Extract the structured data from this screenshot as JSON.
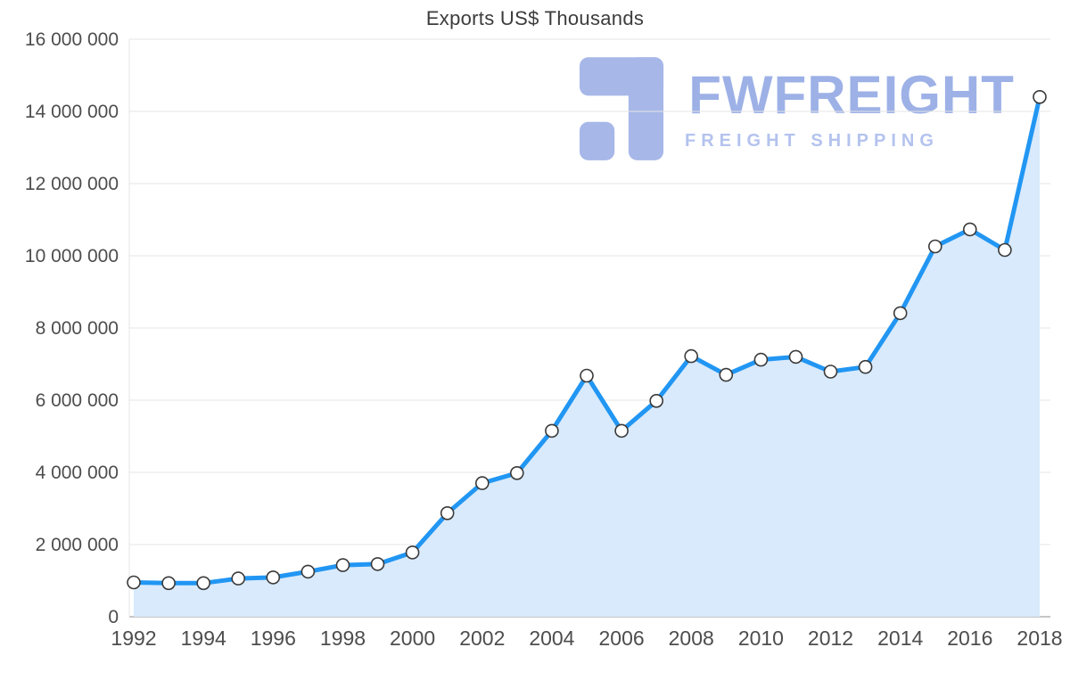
{
  "watermark": {
    "brand": "FWFREIGHT",
    "tagline": "FREIGHT SHIPPING"
  },
  "colors": {
    "line": "#2196f3",
    "area": "#d8eafc",
    "grid": "#e4e4e4",
    "axis": "#b3b3b3",
    "marker_fill": "#ffffff",
    "marker_stroke": "#3a3a3a",
    "tick_text": "#4d4d4d",
    "title_text": "#3c3c3c",
    "wm_icon": "#a7b7e8",
    "wm_brand": "#9db1e7",
    "wm_tagline": "#b4c3ee"
  },
  "chart_data": {
    "type": "line",
    "title": "Exports US$ Thousands",
    "xlabel": "",
    "ylabel": "",
    "grid": true,
    "legend": false,
    "marker": "circle",
    "x": [
      1992,
      1993,
      1994,
      1995,
      1996,
      1997,
      1998,
      1999,
      2000,
      2001,
      2002,
      2003,
      2004,
      2005,
      2006,
      2007,
      2008,
      2009,
      2010,
      2011,
      2012,
      2013,
      2014,
      2015,
      2016,
      2017,
      2018
    ],
    "values": [
      950000,
      930000,
      930000,
      1060000,
      1090000,
      1250000,
      1430000,
      1460000,
      1780000,
      2870000,
      3700000,
      3980000,
      5150000,
      6680000,
      5150000,
      5980000,
      7220000,
      6700000,
      7120000,
      7200000,
      6790000,
      6920000,
      8410000,
      10260000,
      10730000,
      10160000,
      14400000
    ],
    "series_name": "Exports",
    "xlim": [
      1992,
      2018
    ],
    "ylim": [
      0,
      16000000
    ],
    "xticks": [
      1992,
      1994,
      1996,
      1998,
      2000,
      2002,
      2004,
      2006,
      2008,
      2010,
      2012,
      2014,
      2016,
      2018
    ],
    "yticks": [
      0,
      2000000,
      4000000,
      6000000,
      8000000,
      10000000,
      12000000,
      14000000,
      16000000
    ],
    "ytick_labels": [
      "0",
      "2 000 000",
      "4 000 000",
      "6 000 000",
      "8 000 000",
      "10 000 000",
      "12 000 000",
      "14 000 000",
      "16 000 000"
    ]
  }
}
